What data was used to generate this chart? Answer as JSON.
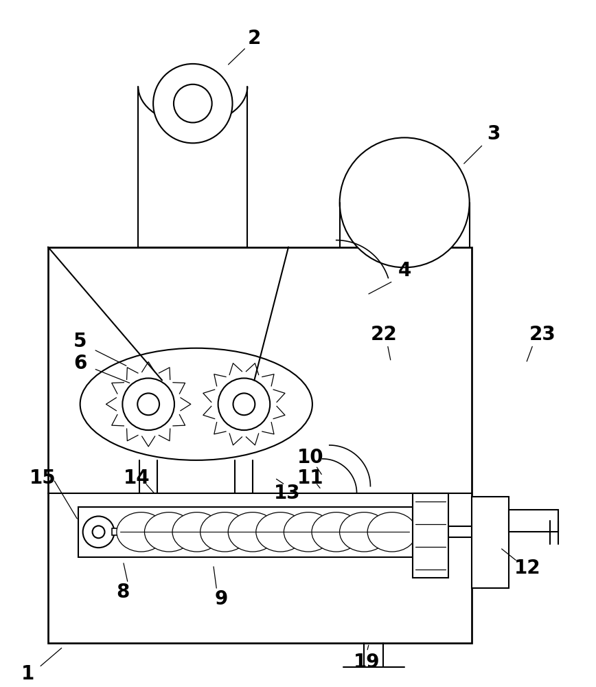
{
  "bg_color": "#ffffff",
  "line_color": "#000000",
  "lw": 1.5,
  "label_fontsize": 20,
  "label_fontweight": "bold",
  "fig_w": 8.68,
  "fig_h": 10.0,
  "dpi": 100
}
